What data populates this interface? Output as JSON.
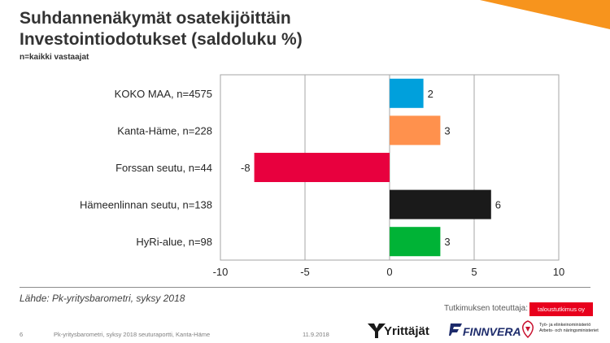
{
  "title_line1": "Suhdannenäkymät osatekijöittäin",
  "title_line2": "Investointiodotukset (saldoluku %)",
  "subtitle": "n=kaikki vastaajat",
  "chart_data": {
    "type": "bar",
    "orientation": "horizontal",
    "categories": [
      "KOKO MAA, n=4575",
      "Kanta-Häme, n=228",
      "Forssan seutu, n=44",
      "Hämeenlinnan seutu, n=138",
      "HyRi-alue, n=98"
    ],
    "values": [
      2,
      3,
      -8,
      6,
      3
    ],
    "value_labels": [
      "2",
      "3",
      "-8",
      "6",
      "3"
    ],
    "colors": [
      "#00a0dc",
      "#ff914d",
      "#e8003e",
      "#1a1a1a",
      "#00b336"
    ],
    "xlim": [
      -10,
      10
    ],
    "xticks": [
      -10,
      -5,
      0,
      5,
      10
    ],
    "xtick_labels": [
      "-10",
      "-5",
      "0",
      "5",
      "10"
    ],
    "grid": true,
    "title": "Investointiodotukset (saldoluku %)",
    "xlabel": "",
    "ylabel": ""
  },
  "source": "Lähde: Pk-yritysbarometri, syksy 2018",
  "footer": {
    "page_number": "6",
    "report": "Pk-yritysbarometri, syksy 2018 seuturaportti, Kanta-Häme",
    "date": "11.9.2018",
    "implemented_by": "Tutkimuksen toteuttaja:",
    "company": "taloustutkimus oy"
  },
  "logos": {
    "yrittajat": "Yrittäjät",
    "finnvera": "FINNVERA",
    "ministry_line1": "Työ- ja elinkeinoministeriö",
    "ministry_line2": "Arbets- och näringsministeriet"
  },
  "accent_color": "#f7941d"
}
